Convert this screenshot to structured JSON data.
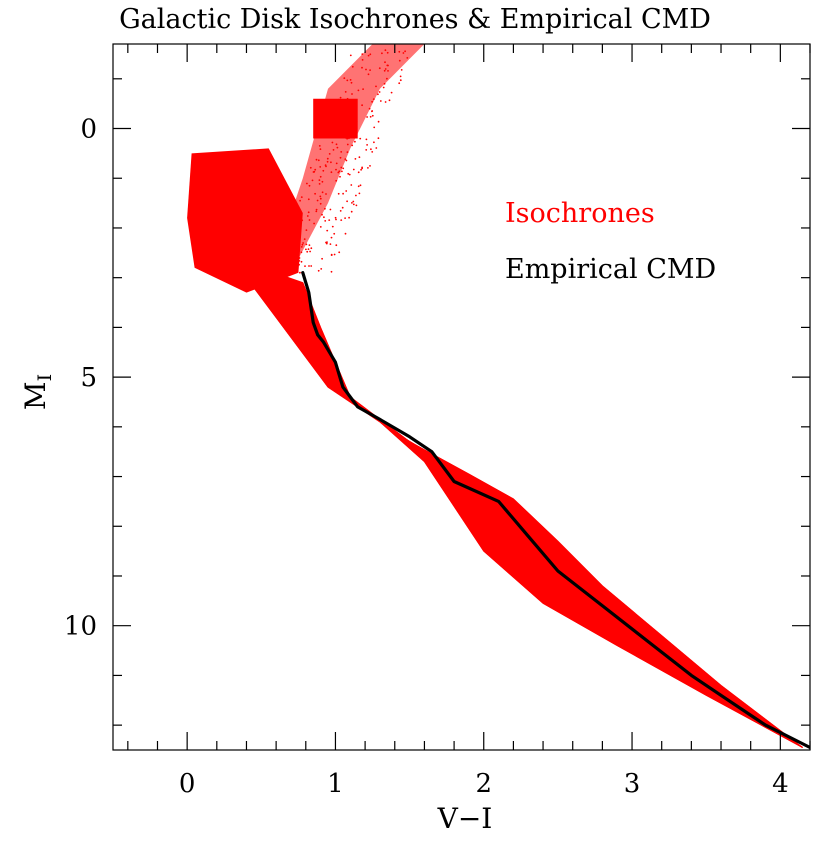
{
  "chart_data": {
    "type": "scatter",
    "title": "Galactic Disk Isochrones & Empirical CMD",
    "xlabel": "V−I",
    "ylabel_main": "M",
    "ylabel_sub": "I",
    "xlim": [
      -0.5,
      4.2
    ],
    "ylim": [
      12.5,
      -1.7
    ],
    "y_inverted": true,
    "x_major_ticks": [
      0,
      1,
      2,
      3,
      4
    ],
    "x_tick_labels": [
      "0",
      "1",
      "2",
      "3",
      "4"
    ],
    "x_minor_step": 0.2,
    "y_major_ticks": [
      0,
      5,
      10
    ],
    "y_tick_labels": [
      "0",
      "5",
      "10"
    ],
    "y_minor_step": 1,
    "legend": [
      {
        "label": "Isochrones",
        "color": "#ff0000"
      },
      {
        "label": "Empirical CMD",
        "color": "#000000"
      }
    ],
    "legend_position": "upper-right",
    "series": [
      {
        "name": "Isochrones",
        "kind": "band",
        "color": "#ff0000",
        "upper_edge": [
          [
            0.78,
            3.1
          ],
          [
            0.9,
            4.0
          ],
          [
            1.1,
            5.4
          ],
          [
            1.5,
            6.3
          ],
          [
            1.9,
            6.95
          ],
          [
            2.2,
            7.45
          ],
          [
            2.5,
            8.3
          ],
          [
            2.8,
            9.2
          ],
          [
            3.2,
            10.2
          ],
          [
            3.6,
            11.2
          ],
          [
            4.15,
            12.45
          ]
        ],
        "lower_edge": [
          [
            0.3,
            2.6
          ],
          [
            0.6,
            3.8
          ],
          [
            0.95,
            5.2
          ],
          [
            1.3,
            5.9
          ],
          [
            1.6,
            6.7
          ],
          [
            1.8,
            7.6
          ],
          [
            2.0,
            8.5
          ],
          [
            2.4,
            9.55
          ],
          [
            2.9,
            10.4
          ],
          [
            3.5,
            11.4
          ],
          [
            4.15,
            12.45
          ]
        ],
        "turnoff_blob": [
          [
            0.03,
            0.5
          ],
          [
            0.55,
            0.4
          ],
          [
            0.78,
            1.7
          ],
          [
            0.75,
            2.9
          ],
          [
            0.4,
            3.3
          ],
          [
            0.05,
            2.8
          ],
          [
            0.0,
            1.8
          ]
        ],
        "red_clump": [
          [
            0.85,
            -0.6
          ],
          [
            1.15,
            -0.6
          ],
          [
            1.15,
            0.2
          ],
          [
            0.85,
            0.2
          ]
        ],
        "giant_branch": [
          [
            0.7,
            2.9
          ],
          [
            0.95,
            1.5
          ],
          [
            1.1,
            0.4
          ],
          [
            1.3,
            -0.8
          ],
          [
            1.6,
            -1.7
          ],
          [
            1.25,
            -1.7
          ],
          [
            0.95,
            -0.8
          ],
          [
            0.78,
            1.0
          ],
          [
            0.6,
            2.6
          ]
        ]
      },
      {
        "name": "Empirical CMD",
        "kind": "line",
        "color": "#000000",
        "x": [
          0.78,
          0.82,
          0.85,
          0.88,
          0.92,
          1.0,
          1.05,
          1.1,
          1.15,
          1.3,
          1.5,
          1.65,
          1.8,
          2.1,
          2.3,
          2.5,
          2.8,
          3.1,
          3.4,
          3.65,
          3.9,
          4.2
        ],
        "y": [
          2.9,
          3.3,
          3.9,
          4.15,
          4.3,
          4.7,
          5.2,
          5.4,
          5.6,
          5.85,
          6.2,
          6.5,
          7.1,
          7.5,
          8.2,
          8.9,
          9.6,
          10.3,
          11.0,
          11.5,
          12.0,
          12.45
        ]
      }
    ]
  }
}
